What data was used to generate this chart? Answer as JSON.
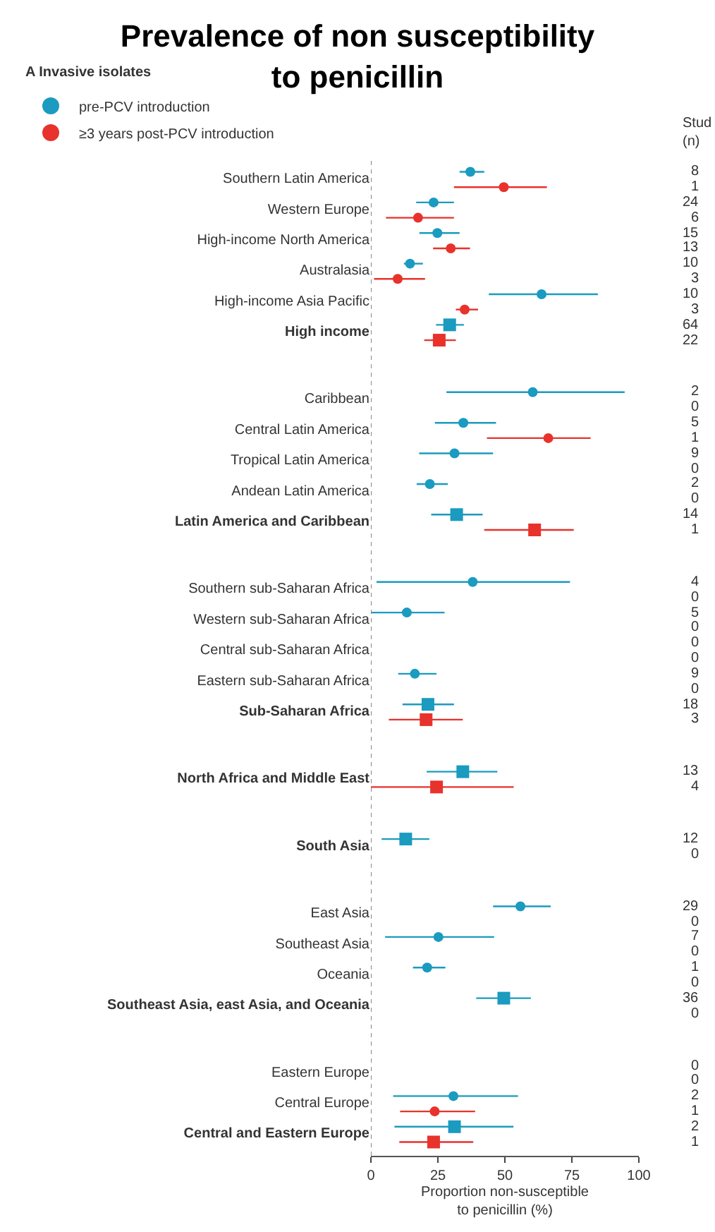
{
  "chart_data": [
    {
      "type": "scatter",
      "orientation": "horizontal",
      "title": "Prevalence of non susceptibility to penicillin",
      "subtitle": "A Invasive isolates",
      "xlabel": "Proportion non-susceptible to penicillin (%)",
      "legend": "top left",
      "xlim": [
        0,
        100
      ],
      "xticks": [
        0,
        25,
        50,
        75,
        100
      ],
      "ref_lines": [
        {
          "axis": "x",
          "value": 0,
          "line_style": "dotted",
          "color": "#888888"
        }
      ],
      "categories": [
        "Southern Latin America",
        "Western Europe",
        "High-income North America",
        "Australasia",
        "High-income Asia Pacific",
        "High income",
        null,
        "Caribbean",
        "Central Latin America",
        "Tropical Latin America",
        "Andean Latin America",
        "Latin America and Caribbean",
        null,
        "Southern sub-Saharan Africa",
        "Western sub-Saharan Africa",
        "Central sub-Saharan Africa",
        "Eastern sub-Saharan Africa",
        "Sub-Saharan Africa",
        null,
        "North Africa and Middle East",
        null,
        "South Asia",
        null,
        "East Asia",
        "Southeast Asia",
        "Oceania",
        "Southeast Asia, east Asia, and Oceania",
        null,
        "Eastern Europe",
        "Central Europe",
        "Central and Eastern Europe"
      ],
      "series": [
        {
          "name": "pre-PCV introduction",
          "color": "#1a9bbf",
          "marker": "circle",
          "values": [
            37.1,
            23.4,
            24.8,
            14.6,
            63.7,
            null,
            null,
            60.4,
            34.5,
            31.2,
            22.0,
            null,
            null,
            38.0,
            13.4,
            null,
            16.4,
            null,
            null,
            null,
            null,
            null,
            null,
            55.8,
            25.2,
            21.0,
            null,
            null,
            null,
            30.8,
            null
          ],
          "errors": [
            [
              33.1,
              42.3
            ],
            [
              16.9,
              31.0
            ],
            [
              18.1,
              33.1
            ],
            [
              12.3,
              19.4
            ],
            [
              44.0,
              84.7
            ],
            null,
            null,
            [
              28.2,
              94.7
            ],
            [
              23.9,
              46.7
            ],
            [
              18.0,
              45.6
            ],
            [
              17.1,
              28.7
            ],
            null,
            null,
            [
              2.1,
              74.3
            ],
            [
              0,
              27.5
            ],
            null,
            [
              10.2,
              24.5
            ],
            null,
            null,
            null,
            null,
            null,
            null,
            [
              45.6,
              67.1
            ],
            [
              5.3,
              46.0
            ],
            [
              15.7,
              27.8
            ],
            null,
            null,
            null,
            [
              8.3,
              54.9
            ],
            null
          ]
        },
        {
          "color": "#1a9bbf",
          "marker": "square",
          "values": [
            null,
            null,
            null,
            null,
            null,
            29.4,
            null,
            null,
            null,
            null,
            null,
            32.0,
            null,
            null,
            null,
            null,
            null,
            21.3,
            null,
            34.3,
            null,
            13.0,
            null,
            null,
            null,
            null,
            49.6,
            null,
            null,
            null,
            31.2
          ],
          "errors": [
            null,
            null,
            null,
            null,
            null,
            [
              24.3,
              34.7
            ],
            null,
            null,
            null,
            null,
            null,
            [
              22.5,
              41.7
            ],
            null,
            null,
            null,
            null,
            null,
            [
              11.8,
              31.0
            ],
            null,
            [
              20.8,
              47.2
            ],
            null,
            [
              4.0,
              21.8
            ],
            null,
            null,
            null,
            null,
            [
              39.3,
              59.7
            ],
            null,
            null,
            null,
            [
              8.8,
              53.2
            ]
          ]
        },
        {
          "name": "≥3 years post-PCV introduction",
          "color": "#e8322c",
          "marker": "circle",
          "values": [
            49.6,
            17.6,
            29.8,
            10.0,
            35.0,
            null,
            null,
            null,
            66.2,
            null,
            null,
            null,
            null,
            null,
            null,
            null,
            null,
            null,
            null,
            null,
            null,
            null,
            null,
            null,
            null,
            null,
            null,
            null,
            null,
            23.8,
            null
          ],
          "errors": [
            [
              31.0,
              65.7
            ],
            [
              5.6,
              31.0
            ],
            [
              23.2,
              37.0
            ],
            [
              1.2,
              20.2
            ],
            [
              31.7,
              40.0
            ],
            null,
            null,
            null,
            [
              43.3,
              82.0
            ],
            null,
            null,
            null,
            null,
            null,
            null,
            null,
            null,
            null,
            null,
            null,
            null,
            null,
            null,
            null,
            null,
            null,
            null,
            null,
            null,
            [
              10.9,
              38.9
            ],
            null
          ]
        },
        {
          "color": "#e8322c",
          "marker": "square",
          "values": [
            null,
            null,
            null,
            null,
            null,
            25.5,
            null,
            null,
            null,
            null,
            null,
            61.1,
            null,
            null,
            null,
            null,
            null,
            20.6,
            null,
            24.5,
            null,
            null,
            null,
            null,
            null,
            null,
            null,
            null,
            null,
            null,
            23.4
          ],
          "errors": [
            null,
            null,
            null,
            null,
            null,
            [
              19.9,
              31.7
            ],
            null,
            null,
            null,
            null,
            null,
            [
              42.3,
              75.7
            ],
            null,
            null,
            null,
            null,
            null,
            [
              6.7,
              34.3
            ],
            null,
            [
              0,
              53.3
            ],
            null,
            null,
            null,
            null,
            null,
            null,
            null,
            null,
            null,
            null,
            [
              10.6,
              38.2
            ]
          ]
        }
      ]
    },
    {
      "type": "other",
      "title": "Stud\n(n)",
      "annotations": [
        "8",
        "1",
        "24",
        "6",
        "15",
        "13",
        "10",
        "3",
        "10",
        "3",
        "64",
        "22",
        "2",
        "0",
        "5",
        "1",
        "9",
        "0",
        "2",
        "0",
        "14",
        "1",
        "4",
        "0",
        "5",
        "0",
        "0",
        "0",
        "9",
        "0",
        "18",
        "3",
        "13",
        "4",
        "12",
        "0",
        "29",
        "0",
        "7",
        "0",
        "1",
        "0",
        "36",
        "0",
        "0",
        "0",
        "2",
        "1",
        "2",
        "1"
      ]
    }
  ]
}
